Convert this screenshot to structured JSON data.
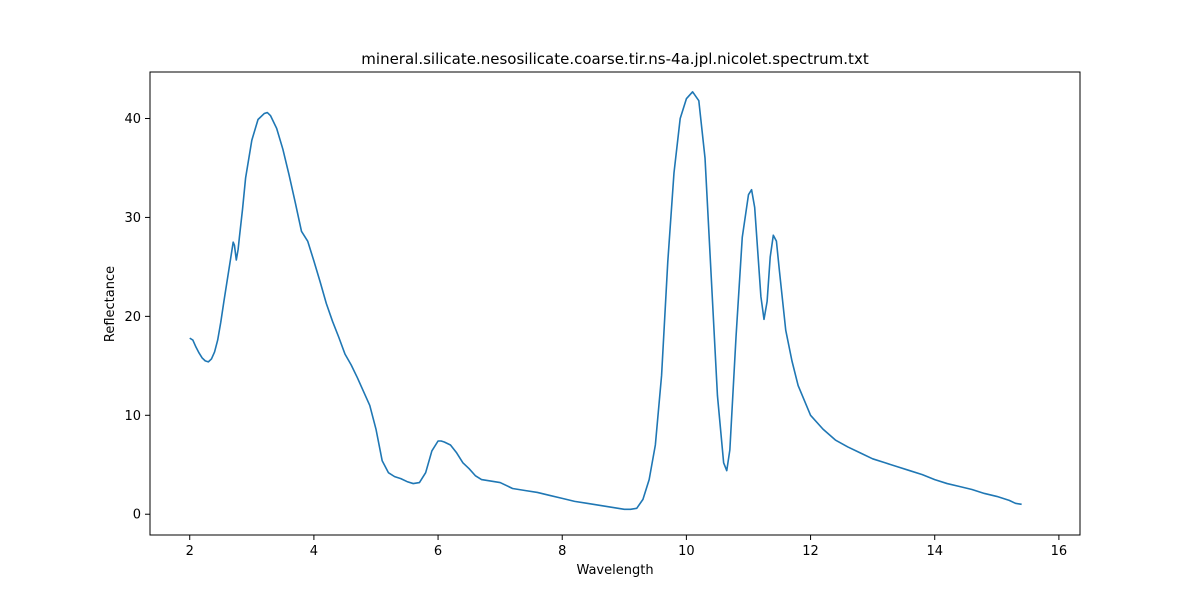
{
  "chart_data": {
    "type": "line",
    "title": "mineral.silicate.nesosilicate.coarse.tir.ns-4a.jpl.nicolet.spectrum.txt",
    "xlabel": "Wavelength",
    "ylabel": "Reflectance",
    "xlim": [
      1.36,
      16.34
    ],
    "ylim": [
      -2.1,
      44.7
    ],
    "xticks": [
      2,
      4,
      6,
      8,
      10,
      12,
      14,
      16
    ],
    "yticks": [
      0,
      10,
      20,
      30,
      40
    ],
    "grid": false,
    "legend": "none",
    "line_color": "#1f77b4",
    "series": [
      {
        "x": [
          2.0,
          2.05,
          2.1,
          2.15,
          2.2,
          2.25,
          2.3,
          2.35,
          2.4,
          2.45,
          2.5,
          2.55,
          2.6,
          2.65,
          2.7,
          2.72,
          2.75,
          2.78,
          2.8,
          2.85,
          2.9,
          3.0,
          3.1,
          3.2,
          3.25,
          3.3,
          3.4,
          3.5,
          3.6,
          3.7,
          3.8,
          3.9,
          4.0,
          4.1,
          4.2,
          4.3,
          4.4,
          4.5,
          4.6,
          4.7,
          4.8,
          4.9,
          5.0,
          5.1,
          5.2,
          5.3,
          5.4,
          5.5,
          5.6,
          5.7,
          5.8,
          5.9,
          6.0,
          6.05,
          6.1,
          6.2,
          6.3,
          6.4,
          6.5,
          6.6,
          6.7,
          6.8,
          7.0,
          7.2,
          7.4,
          7.6,
          7.8,
          8.0,
          8.2,
          8.4,
          8.6,
          8.8,
          9.0,
          9.1,
          9.2,
          9.3,
          9.4,
          9.5,
          9.6,
          9.7,
          9.8,
          9.9,
          10.0,
          10.1,
          10.2,
          10.3,
          10.4,
          10.5,
          10.6,
          10.65,
          10.7,
          10.8,
          10.9,
          11.0,
          11.05,
          11.1,
          11.2,
          11.25,
          11.3,
          11.35,
          11.4,
          11.45,
          11.5,
          11.6,
          11.7,
          11.8,
          12.0,
          12.2,
          12.4,
          12.6,
          12.8,
          13.0,
          13.2,
          13.4,
          13.6,
          13.8,
          14.0,
          14.2,
          14.4,
          14.6,
          14.8,
          15.0,
          15.2,
          15.3,
          15.4
        ],
        "y": [
          17.8,
          17.6,
          16.9,
          16.3,
          15.8,
          15.5,
          15.4,
          15.7,
          16.4,
          17.6,
          19.4,
          21.5,
          23.5,
          25.5,
          27.5,
          27.2,
          25.7,
          26.8,
          28.0,
          30.8,
          34.0,
          37.8,
          39.9,
          40.5,
          40.6,
          40.3,
          39.0,
          36.9,
          34.3,
          31.5,
          28.6,
          27.6,
          25.6,
          23.5,
          21.3,
          19.5,
          17.9,
          16.2,
          15.1,
          13.8,
          12.4,
          11.0,
          8.6,
          5.4,
          4.2,
          3.8,
          3.6,
          3.3,
          3.1,
          3.2,
          4.2,
          6.4,
          7.4,
          7.4,
          7.3,
          7.0,
          6.2,
          5.2,
          4.6,
          3.9,
          3.5,
          3.4,
          3.2,
          2.6,
          2.4,
          2.2,
          1.9,
          1.6,
          1.3,
          1.1,
          0.9,
          0.7,
          0.5,
          0.5,
          0.6,
          1.5,
          3.5,
          7.0,
          14.0,
          25.5,
          34.5,
          40.0,
          42.0,
          42.7,
          41.8,
          36.0,
          24.0,
          12.0,
          5.2,
          4.4,
          6.5,
          18.0,
          28.0,
          32.3,
          32.8,
          31.0,
          22.0,
          19.7,
          21.5,
          26.0,
          28.2,
          27.6,
          24.5,
          18.6,
          15.5,
          13.0,
          10.0,
          8.6,
          7.5,
          6.8,
          6.2,
          5.6,
          5.2,
          4.8,
          4.4,
          4.0,
          3.5,
          3.1,
          2.8,
          2.5,
          2.1,
          1.8,
          1.4,
          1.1,
          1.0
        ]
      }
    ]
  }
}
